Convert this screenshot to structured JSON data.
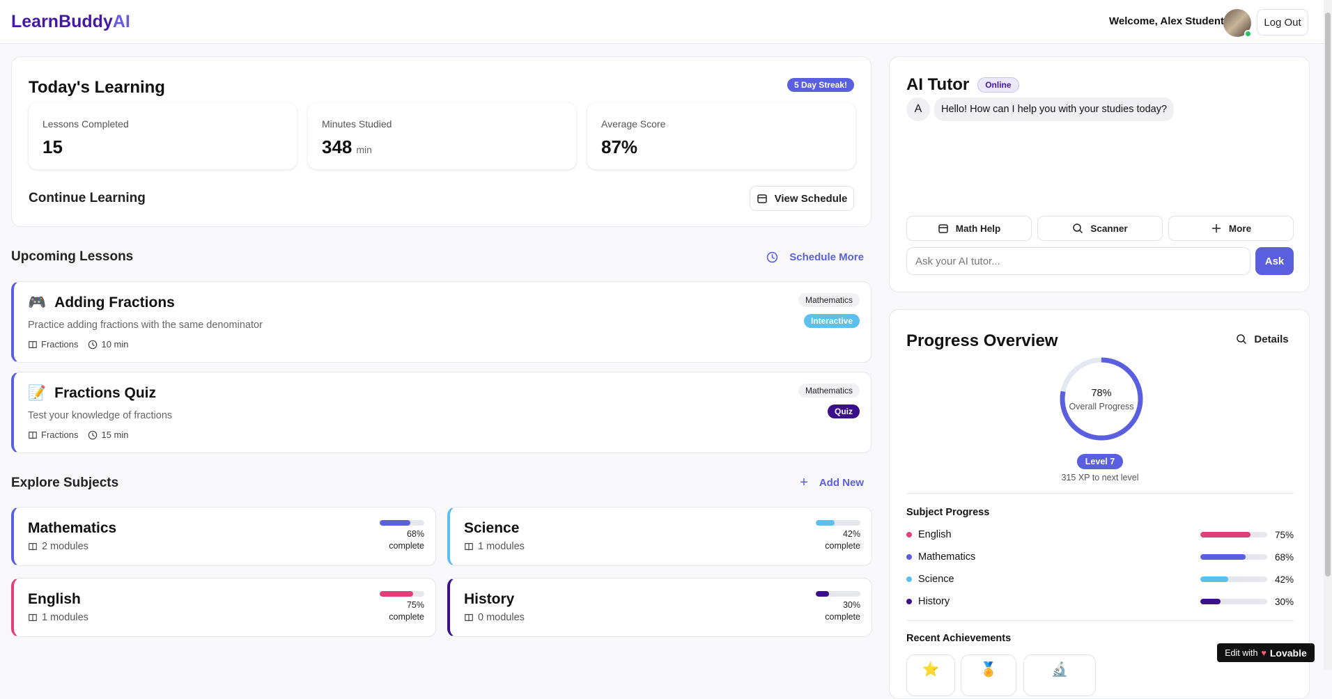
{
  "header": {
    "logo": "LearnBuddy",
    "logo_accent": "AI",
    "welcome": "Welcome, Alex Student",
    "logout": "Log Out"
  },
  "today": {
    "title": "Today's Learning",
    "streak": "5 Day Streak!",
    "stats": [
      {
        "label": "Lessons Completed",
        "value": "15"
      },
      {
        "label": "Minutes Studied",
        "value": "348",
        "unit": "min"
      },
      {
        "label": "Average Score",
        "value": "87%"
      }
    ],
    "continue": "Continue Learning",
    "view_schedule": "View Schedule"
  },
  "upcoming": {
    "title": "Upcoming Lessons",
    "action": "Schedule More",
    "lessons": [
      {
        "icon": "🎮",
        "title": "Adding Fractions",
        "description": "Practice adding fractions with the same denominator",
        "topic": "Fractions",
        "duration": "10 min",
        "subject": "Mathematics",
        "kind": "Interactive",
        "kind_color": "#5bc0eb"
      },
      {
        "icon": "📝",
        "title": "Fractions Quiz",
        "description": "Test your knowledge of fractions",
        "topic": "Fractions",
        "duration": "15 min",
        "subject": "Mathematics",
        "kind": "Quiz",
        "kind_color": "#3b0f8c"
      }
    ]
  },
  "subjects": {
    "title": "Explore Subjects",
    "action": "Add New",
    "items": [
      {
        "name": "Mathematics",
        "modules": "2 modules",
        "progress": "68%",
        "complete": "complete",
        "color": "#5a5fe0"
      },
      {
        "name": "Science",
        "modules": "1 modules",
        "progress": "42%",
        "complete": "complete",
        "color": "#5bc0eb"
      },
      {
        "name": "English",
        "modules": "1 modules",
        "progress": "75%",
        "complete": "complete",
        "color": "#e0407a"
      },
      {
        "name": "History",
        "modules": "0 modules",
        "progress": "30%",
        "complete": "complete",
        "color": "#3b0f8c"
      }
    ]
  },
  "tutor": {
    "title": "AI Tutor",
    "status": "Online",
    "avatar": "A",
    "greeting": "Hello! How can I help you with your studies today?",
    "quick_actions": [
      "Math Help",
      "Scanner",
      "More"
    ],
    "placeholder": "Ask your AI tutor...",
    "ask": "Ask"
  },
  "progress": {
    "title": "Progress Overview",
    "details": "Details",
    "overall": "78%",
    "overall_label": "Overall Progress",
    "level": "Level 7",
    "xp": "315 XP to next level",
    "subject_title": "Subject Progress",
    "subjects": [
      {
        "name": "English",
        "value": "75%",
        "color": "#e0407a"
      },
      {
        "name": "Mathematics",
        "value": "68%",
        "color": "#5a5fe0"
      },
      {
        "name": "Science",
        "value": "42%",
        "color": "#5bc0eb"
      },
      {
        "name": "History",
        "value": "30%",
        "color": "#3b0f8c"
      }
    ],
    "achievements_title": "Recent Achievements"
  },
  "badge": {
    "text": "Edit with",
    "brand": "Lovable"
  }
}
